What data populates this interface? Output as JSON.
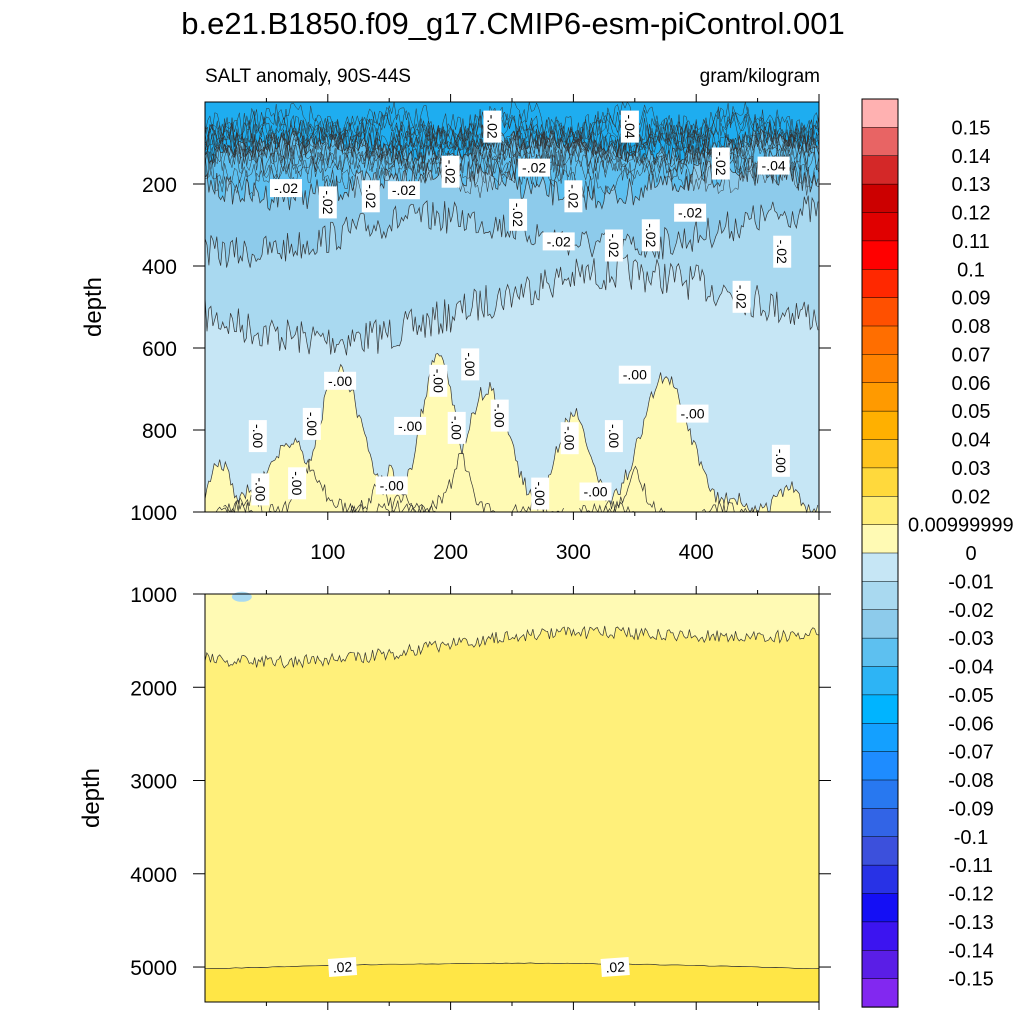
{
  "title": "b.e21.B1850.f09_g17.CMIP6-esm-piControl.001",
  "chart_data": {
    "type": "heatmap",
    "subtitle_left": "SALT anomaly, 90S-44S",
    "subtitle_right": "gram/kilogram",
    "xlabel": "",
    "ylabel": "depth",
    "xlim": [
      0,
      500
    ],
    "x_ticks": [
      "100",
      "200",
      "300",
      "400",
      "500"
    ],
    "panels": [
      {
        "name": "upper",
        "ylim": [
          0,
          1000
        ],
        "y_ticks": [
          "200",
          "400",
          "600",
          "800",
          "1000"
        ],
        "contour_labels": [
          {
            "text": "-.02",
            "x": 66,
            "y": 210
          },
          {
            "text": "-.02",
            "x": 100,
            "y": 245
          },
          {
            "text": "-.02",
            "x": 135,
            "y": 230
          },
          {
            "text": "-.02",
            "x": 162,
            "y": 215
          },
          {
            "text": "-.02",
            "x": 200,
            "y": 170
          },
          {
            "text": "-.02",
            "x": 234,
            "y": 60
          },
          {
            "text": "-.02",
            "x": 268,
            "y": 160
          },
          {
            "text": "-.02",
            "x": 255,
            "y": 275
          },
          {
            "text": "-.02",
            "x": 300,
            "y": 230
          },
          {
            "text": "-.02",
            "x": 288,
            "y": 340
          },
          {
            "text": "-.02",
            "x": 333,
            "y": 350
          },
          {
            "text": "-.02",
            "x": 363,
            "y": 325
          },
          {
            "text": "-.02",
            "x": 395,
            "y": 270
          },
          {
            "text": "-.04",
            "x": 346,
            "y": 60
          },
          {
            "text": "-.02",
            "x": 420,
            "y": 150
          },
          {
            "text": "-.04",
            "x": 463,
            "y": 155
          },
          {
            "text": "-.02",
            "x": 470,
            "y": 365
          },
          {
            "text": "-.02",
            "x": 437,
            "y": 475
          },
          {
            "text": "-.00",
            "x": 110,
            "y": 680
          },
          {
            "text": "-.00",
            "x": 190,
            "y": 680
          },
          {
            "text": "-.00",
            "x": 216,
            "y": 640
          },
          {
            "text": "-.00",
            "x": 350,
            "y": 665
          },
          {
            "text": "-.00",
            "x": 43,
            "y": 815
          },
          {
            "text": "-.00",
            "x": 87,
            "y": 785
          },
          {
            "text": "-.00",
            "x": 167,
            "y": 790
          },
          {
            "text": "-.00",
            "x": 205,
            "y": 795
          },
          {
            "text": "-.00",
            "x": 240,
            "y": 765
          },
          {
            "text": "-.00",
            "x": 397,
            "y": 760
          },
          {
            "text": "-.00",
            "x": 45,
            "y": 945
          },
          {
            "text": "-.00",
            "x": 75,
            "y": 930
          },
          {
            "text": "-.00",
            "x": 152,
            "y": 935
          },
          {
            "text": "-.00",
            "x": 273,
            "y": 955
          },
          {
            "text": "-.00",
            "x": 297,
            "y": 820
          },
          {
            "text": "-.00",
            "x": 318,
            "y": 950
          },
          {
            "text": "-.00",
            "x": 333,
            "y": 815
          },
          {
            "text": "-.00",
            "x": 469,
            "y": 875
          }
        ]
      },
      {
        "name": "lower",
        "ylim": [
          1000,
          5375
        ],
        "y_ticks": [
          "1000",
          "2000",
          "3000",
          "4000",
          "5000"
        ],
        "contour_labels": [
          {
            "text": ".02",
            "x": 112,
            "y": 5000
          },
          {
            "text": ".02",
            "x": 334,
            "y": 5000
          }
        ]
      }
    ],
    "colorbar": {
      "labels": [
        "0.15",
        "0.14",
        "0.13",
        "0.12",
        "0.11",
        "0.1",
        "0.09",
        "0.08",
        "0.07",
        "0.06",
        "0.05",
        "0.04",
        "0.03",
        "0.02",
        "0.00999999",
        "0",
        "-0.01",
        "-0.02",
        "-0.03",
        "-0.04",
        "-0.05",
        "-0.06",
        "-0.07",
        "-0.08",
        "-0.09",
        "-0.1",
        "-0.11",
        "-0.12",
        "-0.13",
        "-0.14",
        "-0.15"
      ],
      "colors": [
        "#FFB1B1",
        "#E86464",
        "#D42828",
        "#CC0000",
        "#E00000",
        "#FF0000",
        "#FF2800",
        "#FF5000",
        "#FF6E00",
        "#FF8200",
        "#FF9A00",
        "#FFB000",
        "#FFC41E",
        "#FFD93C",
        "#FFEE78",
        "#FFFAB4",
        "#C6E6F5",
        "#A9D9F0",
        "#8DCBEB",
        "#5DC0F0",
        "#2DB4F5",
        "#00B4FF",
        "#14A0FF",
        "#1E8CFF",
        "#2878F0",
        "#3264E6",
        "#3C50DC",
        "#2832E6",
        "#140FF5",
        "#3C14F0",
        "#5A1EE6",
        "#8228F0"
      ]
    },
    "fills": {
      "upper_neg": [
        "#1EADF0",
        "#5DC0F0",
        "#8DCBEB",
        "#A9D9F0",
        "#C6E6F5"
      ],
      "upper_pos": "#FFFAB4",
      "lower_bg": "#FFF07A",
      "lower_top": "#FFFAB4",
      "lower_bottom": "#FFE646",
      "lower_patch": "#A9D9F0",
      "contour": "#333333"
    }
  }
}
